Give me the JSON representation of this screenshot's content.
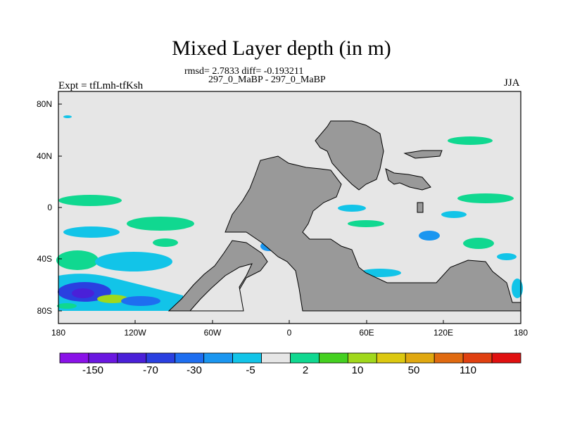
{
  "title": "Mixed Layer depth (in m)",
  "stats_line": "rmsd= 2.7833 diff= -0.193211",
  "runs_line": "297_0_MaBP - 297_0_MaBP",
  "expt_label": "Expt = tfLmh-tfKsh",
  "season_label": "JJA",
  "map": {
    "lon_range": [
      -180,
      180
    ],
    "lat_range": [
      -90,
      90
    ],
    "y_ticks": [
      "80N",
      "40N",
      "0",
      "40S",
      "80S"
    ],
    "x_ticks": [
      "180",
      "120W",
      "60W",
      "0",
      "60E",
      "120E",
      "180"
    ],
    "ocean_color": "#e6e6e6",
    "land_color": "#999999"
  },
  "colorbar": {
    "colors": [
      "#8a12e8",
      "#6a17e0",
      "#4a20d8",
      "#2a40e0",
      "#1e6ef0",
      "#1a96f0",
      "#12c4e8",
      "#e6e6e6",
      "#10d890",
      "#44d020",
      "#a0d81c",
      "#dcc810",
      "#e0a810",
      "#e06a10",
      "#e04010",
      "#e01010"
    ],
    "labels": [
      "-150",
      "-70",
      "-30",
      "-5",
      "2",
      "10",
      "50",
      "110"
    ]
  }
}
